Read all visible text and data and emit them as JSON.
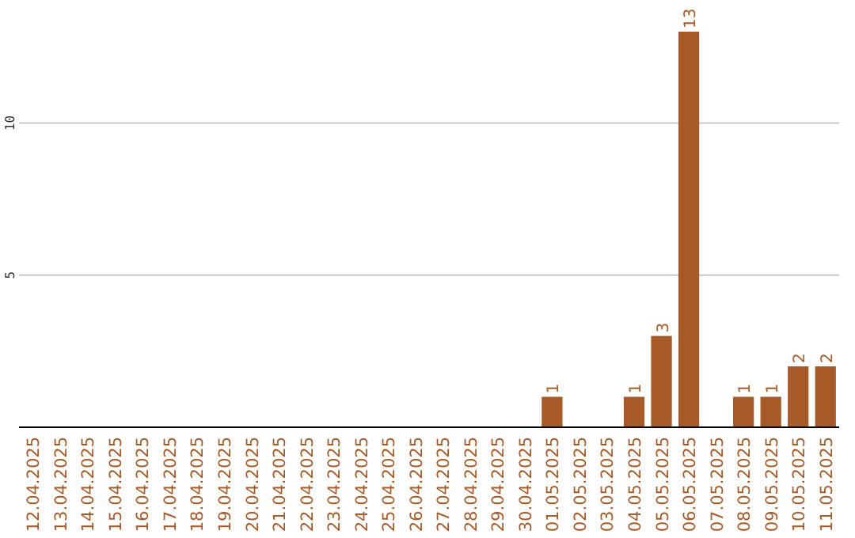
{
  "chart_data": {
    "type": "bar",
    "categories": [
      "12.04.2025",
      "13.04.2025",
      "14.04.2025",
      "15.04.2025",
      "16.04.2025",
      "17.04.2025",
      "18.04.2025",
      "19.04.2025",
      "20.04.2025",
      "21.04.2025",
      "22.04.2025",
      "23.04.2025",
      "24.04.2025",
      "25.04.2025",
      "26.04.2025",
      "27.04.2025",
      "28.04.2025",
      "29.04.2025",
      "30.04.2025",
      "01.05.2025",
      "02.05.2025",
      "03.05.2025",
      "04.05.2025",
      "05.05.2025",
      "06.05.2025",
      "07.05.2025",
      "08.05.2025",
      "09.05.2025",
      "10.05.2025",
      "11.05.2025"
    ],
    "values": [
      0,
      0,
      0,
      0,
      0,
      0,
      0,
      0,
      0,
      0,
      0,
      0,
      0,
      0,
      0,
      0,
      0,
      0,
      0,
      1,
      0,
      0,
      1,
      3,
      13,
      0,
      1,
      1,
      2,
      2
    ],
    "value_labels": [
      null,
      null,
      null,
      null,
      null,
      null,
      null,
      null,
      null,
      null,
      null,
      null,
      null,
      null,
      null,
      null,
      null,
      null,
      null,
      "1",
      null,
      null,
      "1",
      "3",
      "13",
      null,
      "1",
      "1",
      "2",
      "2"
    ],
    "color": "#a65a28",
    "ylim": [
      0,
      13
    ],
    "yticks": [
      5,
      10
    ],
    "grid": "y"
  }
}
